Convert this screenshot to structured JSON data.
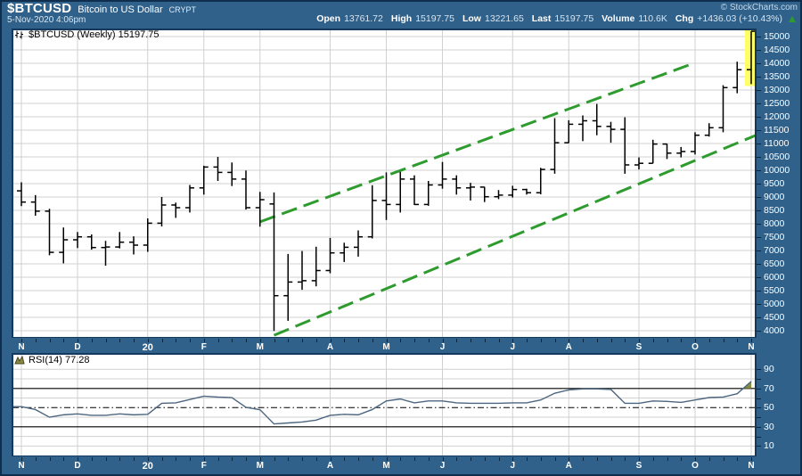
{
  "header": {
    "symbol": "$BTCUSD",
    "title": "Bitcoin to US Dollar",
    "exchange": "CRYPT",
    "datetime": "5-Nov-2020 4:06pm",
    "copyright": "© StockCharts.com",
    "quote": {
      "open_label": "Open",
      "open": "13761.72",
      "high_label": "High",
      "high": "15197.75",
      "low_label": "Low",
      "low": "13221.65",
      "last_label": "Last",
      "last": "15197.75",
      "volume_label": "Volume",
      "volume": "110.6K",
      "chg_label": "Chg",
      "chg": "+1436.03 (+10.43%)",
      "change_direction": "up"
    }
  },
  "main_chart": {
    "label": "$BTCUSD (Weekly) 15197.75"
  },
  "rsi_panel": {
    "label": "RSI(14) 77.28"
  },
  "colors": {
    "background": "#2F618A",
    "frame": "#14395D",
    "plot_bg": "#FFFFFF",
    "grid": "#D0D0D0",
    "bar": "#000000",
    "trendline": "#2E9B2E",
    "highlight": "#FFFF66",
    "rsi_line": "#4D6680",
    "rsi_fill": "#8B8B40",
    "axis_text": "#FFFFFF",
    "tick": "#0A2740",
    "up_green": "#2E9B2E"
  },
  "chart_data": [
    {
      "type": "ohlc-bar",
      "title": "$BTCUSD (Weekly) 15197.75",
      "symbol": "$BTCUSD",
      "period": "Weekly",
      "last": 15197.75,
      "x_tick_labels": [
        "N",
        "D",
        "20",
        "F",
        "M",
        "A",
        "M",
        "J",
        "J",
        "A",
        "S",
        "O",
        "N"
      ],
      "x_tick_bar_index": [
        0,
        4,
        9,
        13,
        17,
        22,
        26,
        30,
        35,
        39,
        44,
        48,
        52
      ],
      "ylim": [
        3800,
        15300
      ],
      "y_tick_start": 4000,
      "y_tick_end": 15000,
      "y_tick_step": 500,
      "bars_ohlc": [
        [
          9230,
          9550,
          8660,
          8810
        ],
        [
          8810,
          9070,
          8300,
          8470
        ],
        [
          8470,
          8560,
          6820,
          6930
        ],
        [
          6930,
          7860,
          6520,
          7400
        ],
        [
          7400,
          7690,
          7090,
          7510
        ],
        [
          7510,
          7600,
          7030,
          7110
        ],
        [
          7110,
          7360,
          6430,
          7130
        ],
        [
          7130,
          7690,
          7080,
          7310
        ],
        [
          7310,
          7530,
          6850,
          7200
        ],
        [
          7200,
          8200,
          6950,
          8020
        ],
        [
          8020,
          9000,
          7900,
          8700
        ],
        [
          8700,
          8790,
          8220,
          8600
        ],
        [
          8600,
          9450,
          8420,
          9340
        ],
        [
          9340,
          10170,
          9090,
          10120
        ],
        [
          10120,
          10500,
          9600,
          9920
        ],
        [
          9920,
          10290,
          9410,
          9670
        ],
        [
          9670,
          9990,
          8530,
          8600
        ],
        [
          8600,
          9190,
          7890,
          8900
        ],
        [
          8740,
          9170,
          3990,
          5310
        ],
        [
          5310,
          6870,
          4370,
          5820
        ],
        [
          5820,
          6980,
          5530,
          5870
        ],
        [
          5870,
          7140,
          5660,
          6250
        ],
        [
          6250,
          7470,
          6150,
          6910
        ],
        [
          6910,
          7290,
          6570,
          7120
        ],
        [
          7120,
          7750,
          6770,
          7510
        ],
        [
          7510,
          9440,
          7450,
          8870
        ],
        [
          8870,
          9920,
          8140,
          8720
        ],
        [
          8720,
          9940,
          8420,
          9670
        ],
        [
          9670,
          9810,
          8700,
          8720
        ],
        [
          8720,
          9600,
          8670,
          9450
        ],
        [
          9450,
          10310,
          9310,
          9670
        ],
        [
          9670,
          9810,
          9090,
          9340
        ],
        [
          9340,
          9530,
          8870,
          9370
        ],
        [
          9370,
          9380,
          8810,
          9010
        ],
        [
          9010,
          9260,
          8920,
          9070
        ],
        [
          9070,
          9420,
          8980,
          9280
        ],
        [
          9280,
          9310,
          9090,
          9160
        ],
        [
          9160,
          10090,
          9100,
          10030
        ],
        [
          10030,
          11950,
          9870,
          11030
        ],
        [
          11030,
          11870,
          11020,
          11720
        ],
        [
          11720,
          12050,
          11090,
          11850
        ],
        [
          11850,
          12480,
          11310,
          11640
        ],
        [
          11640,
          11810,
          11030,
          11530
        ],
        [
          11530,
          11980,
          9870,
          10200
        ],
        [
          10200,
          10480,
          10030,
          10260
        ],
        [
          10260,
          11140,
          10260,
          10980
        ],
        [
          10980,
          10990,
          10420,
          10640
        ],
        [
          10640,
          10870,
          10480,
          10700
        ],
        [
          10700,
          11420,
          10590,
          11310
        ],
        [
          11310,
          11760,
          11260,
          11590
        ],
        [
          11590,
          13180,
          11420,
          13090
        ],
        [
          13090,
          14060,
          12880,
          13760
        ],
        [
          13761.72,
          15197.75,
          13221.65,
          15197.75
        ]
      ],
      "trendlines": [
        {
          "name": "channel-upper-trendline",
          "from_bar": 17.0,
          "from_price": 8070,
          "to_bar": 47.9,
          "to_price": 14000
        },
        {
          "name": "channel-lower-trendline",
          "from_bar": 18.0,
          "from_price": 3830,
          "to_bar": 52.3,
          "to_price": 11300
        }
      ],
      "last_bar_highlight": {
        "bar_index": 52,
        "price_top": 15300,
        "price_bottom": 13150
      }
    },
    {
      "type": "line",
      "title": "RSI(14)",
      "current": 77.28,
      "values": [
        51,
        48,
        40,
        42.5,
        43.5,
        42,
        42,
        43.5,
        42.5,
        43,
        54.5,
        55,
        58.5,
        62,
        61,
        60.5,
        50.3,
        47.8,
        33,
        34,
        35,
        37,
        42,
        43,
        42.5,
        48,
        57,
        59,
        55,
        57,
        57,
        55,
        54.5,
        54.5,
        54.5,
        55,
        55,
        58,
        65,
        68.5,
        69.5,
        69.5,
        69,
        54.5,
        54.5,
        57,
        56.5,
        55.5,
        58,
        60.5,
        61,
        64.5,
        77.28
      ],
      "overbought": 70,
      "midline": 50,
      "oversold": 30,
      "y_axis_labels": [
        90,
        70,
        50,
        30,
        10
      ],
      "y_grid_light": [
        90,
        80,
        60,
        40,
        20,
        10
      ],
      "ylim": [
        1,
        107
      ]
    }
  ]
}
